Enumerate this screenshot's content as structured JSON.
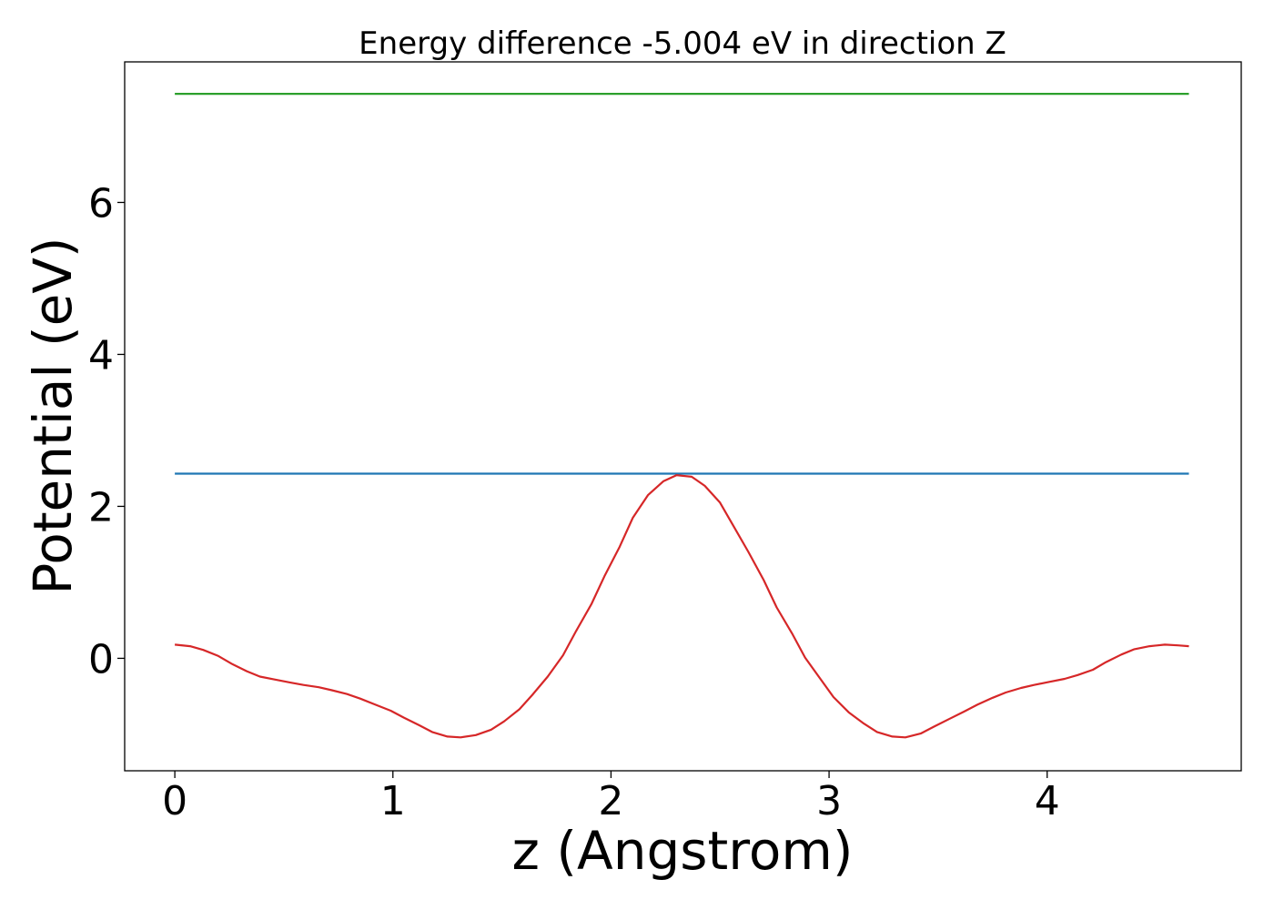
{
  "chart_data": {
    "type": "line",
    "title": "Energy difference -5.004 eV in direction Z",
    "xlabel": "z (Angstrom)",
    "ylabel": "Potential (eV)",
    "xlim": [
      -0.23,
      4.89
    ],
    "ylim": [
      -1.48,
      7.85
    ],
    "xticks": [
      0,
      1,
      2,
      3,
      4
    ],
    "yticks": [
      0,
      2,
      4,
      6
    ],
    "grid": false,
    "legend": "none",
    "series": [
      {
        "color": "#2ca02c",
        "x": [
          0,
          4.65
        ],
        "y": [
          7.43,
          7.43
        ]
      },
      {
        "color": "#1f77b4",
        "x": [
          0,
          4.65
        ],
        "y": [
          2.43,
          2.43
        ]
      },
      {
        "color": "#d62728",
        "x": [
          0,
          0.07,
          0.13,
          0.2,
          0.26,
          0.33,
          0.39,
          0.46,
          0.53,
          0.59,
          0.66,
          0.72,
          0.79,
          0.85,
          0.92,
          0.99,
          1.05,
          1.12,
          1.18,
          1.25,
          1.31,
          1.38,
          1.45,
          1.51,
          1.58,
          1.64,
          1.71,
          1.78,
          1.84,
          1.91,
          1.97,
          2.04,
          2.1,
          2.17,
          2.24,
          2.3,
          2.37,
          2.43,
          2.5,
          2.56,
          2.63,
          2.7,
          2.76,
          2.83,
          2.89,
          2.96,
          3.02,
          3.09,
          3.16,
          3.22,
          3.29,
          3.35,
          3.42,
          3.48,
          3.55,
          3.62,
          3.68,
          3.75,
          3.81,
          3.88,
          3.94,
          4.01,
          4.08,
          4.14,
          4.21,
          4.27,
          4.34,
          4.4,
          4.47,
          4.54,
          4.6,
          4.65
        ],
        "y": [
          0.18,
          0.16,
          0.11,
          0.03,
          -0.07,
          -0.17,
          -0.24,
          -0.28,
          -0.32,
          -0.35,
          -0.38,
          -0.42,
          -0.47,
          -0.53,
          -0.61,
          -0.69,
          -0.78,
          -0.88,
          -0.97,
          -1.03,
          -1.04,
          -1.01,
          -0.94,
          -0.83,
          -0.67,
          -0.48,
          -0.24,
          0.04,
          0.36,
          0.71,
          1.08,
          1.47,
          1.85,
          2.15,
          2.33,
          2.41,
          2.39,
          2.27,
          2.05,
          1.75,
          1.4,
          1.03,
          0.67,
          0.33,
          0.01,
          -0.27,
          -0.51,
          -0.71,
          -0.86,
          -0.97,
          -1.03,
          -1.04,
          -0.99,
          -0.9,
          -0.8,
          -0.7,
          -0.61,
          -0.52,
          -0.45,
          -0.39,
          -0.35,
          -0.31,
          -0.27,
          -0.22,
          -0.15,
          -0.05,
          0.05,
          0.12,
          0.16,
          0.18,
          0.17,
          0.16
        ]
      }
    ]
  }
}
